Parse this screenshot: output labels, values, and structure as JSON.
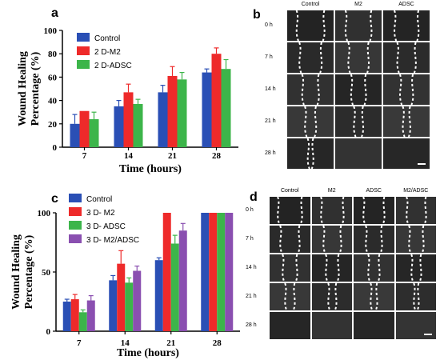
{
  "panels": {
    "a": {
      "letter": "a"
    },
    "b": {
      "letter": "b"
    },
    "c": {
      "letter": "c"
    },
    "d": {
      "letter": "d"
    }
  },
  "colors": {
    "blue": "#2a4fb5",
    "red": "#ee2a2a",
    "green": "#3cb54a",
    "purple": "#8a4fb0"
  },
  "chart_data": [
    {
      "type": "bar",
      "panel": "a",
      "categories": [
        "7",
        "14",
        "21",
        "28"
      ],
      "series": [
        {
          "name": "Control",
          "color": "#2a4fb5",
          "values": [
            20,
            35,
            47,
            64
          ],
          "errors": [
            8,
            5,
            6,
            3
          ]
        },
        {
          "name": "2 D-M2",
          "color": "#ee2a2a",
          "values": [
            31,
            47,
            61,
            80
          ],
          "errors": [
            0,
            7,
            8,
            5
          ]
        },
        {
          "name": "2 D-ADSC",
          "color": "#3cb54a",
          "values": [
            24,
            37,
            58,
            67
          ],
          "errors": [
            6,
            4,
            6,
            8
          ]
        }
      ],
      "ylabel": "Wound Healing Percentage (%)",
      "xlabel": "Time (hours)",
      "ylim": [
        0,
        100
      ],
      "yticks": [
        "0",
        "20",
        "40",
        "60",
        "80",
        "100"
      ],
      "legend": "top-left"
    },
    {
      "type": "bar",
      "panel": "c",
      "categories": [
        "7",
        "14",
        "21",
        "28"
      ],
      "series": [
        {
          "name": "Control",
          "color": "#2a4fb5",
          "values": [
            25,
            43,
            60,
            100
          ],
          "errors": [
            2,
            4,
            2,
            0
          ]
        },
        {
          "name": "3 D- M2",
          "color": "#ee2a2a",
          "values": [
            27,
            57,
            100,
            100
          ],
          "errors": [
            4,
            11,
            0,
            0
          ]
        },
        {
          "name": "3 D- ADSC",
          "color": "#3cb54a",
          "values": [
            16,
            41,
            74,
            100
          ],
          "errors": [
            2,
            4,
            7,
            0
          ]
        },
        {
          "name": "3 D- M2/ADSC",
          "color": "#8a4fb0",
          "values": [
            26,
            51,
            85,
            100
          ],
          "errors": [
            4,
            4,
            6,
            0
          ]
        }
      ],
      "ylabel": "Wound Healing Percentage (%)",
      "xlabel": "Time (hours)",
      "ylim": [
        0,
        100
      ],
      "yticks": [
        "0",
        "50",
        "100"
      ],
      "legend": "top-left"
    }
  ],
  "image_grids": {
    "b": {
      "columns": [
        "Control",
        "M2",
        "ADSC"
      ],
      "rows": [
        "0 h",
        "7 h",
        "14 h",
        "21 h",
        "28 h"
      ]
    },
    "d": {
      "columns": [
        "Control",
        "M2",
        "ADSC",
        "M2/ADSC"
      ],
      "rows": [
        "0 h",
        "7 h",
        "14 h",
        "21 h",
        "28 h"
      ]
    }
  }
}
